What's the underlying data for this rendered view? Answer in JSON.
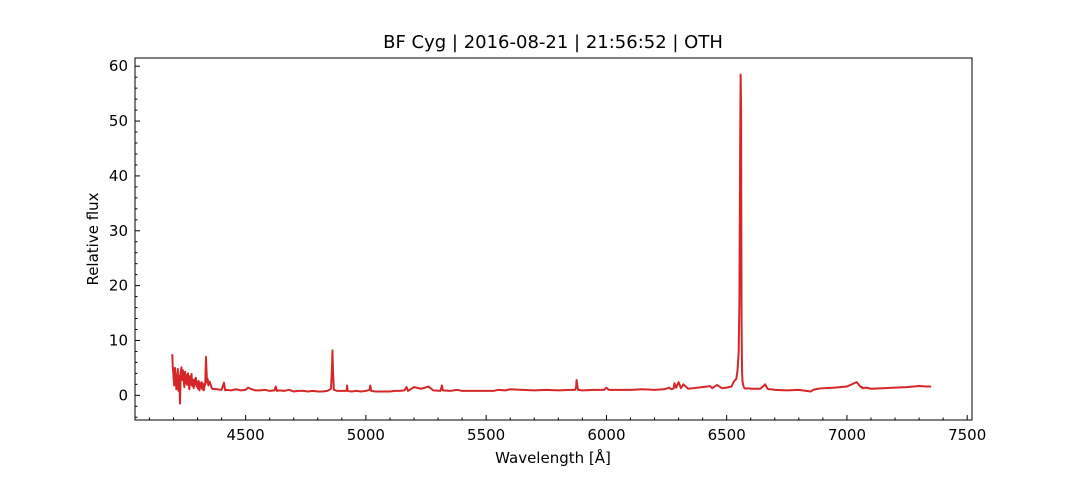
{
  "chart_data": {
    "type": "line",
    "title": "BF Cyg | 2016-08-21 | 21:56:52 | OTH",
    "xlabel": "Wavelength [Å]",
    "ylabel": "Relative flux",
    "xlim": [
      4040,
      7520
    ],
    "ylim": [
      -4.5,
      61.5
    ],
    "xticks": [
      4500,
      5000,
      5500,
      6000,
      6500,
      7000,
      7500
    ],
    "yticks": [
      0,
      10,
      20,
      30,
      40,
      50,
      60
    ],
    "grid": false,
    "line_color": "#d62728",
    "series": [
      {
        "x": [
          4195,
          4197,
          4200,
          4203,
          4206,
          4209,
          4212,
          4215,
          4218,
          4221,
          4224,
          4227,
          4230,
          4233,
          4236,
          4239,
          4242,
          4245,
          4248,
          4251,
          4254,
          4257,
          4260,
          4263,
          4266,
          4269,
          4272,
          4275,
          4278,
          4281,
          4284,
          4287,
          4290,
          4293,
          4296,
          4299,
          4302,
          4305,
          4308,
          4311,
          4314,
          4317,
          4320,
          4323,
          4326,
          4329,
          4332,
          4335,
          4338,
          4340,
          4342,
          4345,
          4350,
          4360,
          4380,
          4400,
          4410,
          4415,
          4420,
          4440,
          4460,
          4480,
          4500,
          4510,
          4520,
          4540,
          4560,
          4580,
          4600,
          4620,
          4625,
          4630,
          4640,
          4660,
          4680,
          4700,
          4720,
          4740,
          4760,
          4780,
          4800,
          4820,
          4840,
          4855,
          4859,
          4861,
          4863,
          4867,
          4880,
          4900,
          4920,
          4922,
          4924,
          4940,
          4960,
          4980,
          5000,
          5015,
          5018,
          5022,
          5040,
          5060,
          5080,
          5100,
          5120,
          5140,
          5160,
          5169,
          5175,
          5200,
          5230,
          5260,
          5280,
          5310,
          5316,
          5320,
          5350,
          5380,
          5400,
          5450,
          5500,
          5530,
          5550,
          5580,
          5600,
          5650,
          5700,
          5750,
          5800,
          5850,
          5870,
          5874,
          5876,
          5878,
          5882,
          5900,
          5950,
          5990,
          6000,
          6010,
          6050,
          6100,
          6150,
          6200,
          6240,
          6260,
          6270,
          6280,
          6283,
          6290,
          6300,
          6310,
          6320,
          6340,
          6360,
          6380,
          6400,
          6420,
          6430,
          6440,
          6460,
          6480,
          6500,
          6520,
          6530,
          6540,
          6545,
          6550,
          6553,
          6556,
          6558,
          6560,
          6561,
          6562,
          6563,
          6564,
          6565,
          6566,
          6568,
          6570,
          6572,
          6575,
          6580,
          6590,
          6600,
          6620,
          6640,
          6660,
          6670,
          6678,
          6685,
          6700,
          6750,
          6800,
          6850,
          6860,
          6870,
          6880,
          6900,
          6950,
          7000,
          7040,
          7060,
          7063,
          7066,
          7080,
          7100,
          7150,
          7200,
          7250,
          7300,
          7330,
          7350
        ],
        "y": [
          7.5,
          5.2,
          3.6,
          1.8,
          5.0,
          3.2,
          1.1,
          2.9,
          4.8,
          0.8,
          3.6,
          -1.5,
          4.2,
          5.1,
          2.8,
          4.6,
          3.0,
          1.5,
          4.3,
          2.2,
          3.7,
          1.9,
          4.0,
          2.4,
          1.1,
          3.5,
          2.0,
          3.9,
          1.7,
          2.8,
          1.3,
          2.9,
          2.0,
          3.2,
          1.6,
          2.5,
          1.2,
          2.6,
          0.9,
          2.2,
          1.4,
          2.4,
          1.1,
          2.1,
          0.9,
          1.7,
          2.0,
          7.0,
          3.8,
          2.3,
          3.0,
          1.8,
          2.5,
          1.2,
          1.1,
          1.0,
          2.3,
          0.9,
          1.0,
          0.9,
          1.1,
          0.9,
          1.0,
          1.4,
          1.2,
          0.9,
          0.9,
          1.0,
          0.8,
          0.9,
          1.6,
          0.8,
          0.9,
          0.8,
          1.0,
          0.7,
          0.8,
          0.8,
          0.7,
          0.8,
          0.7,
          0.7,
          0.8,
          1.2,
          5.0,
          8.2,
          4.5,
          1.0,
          0.8,
          0.8,
          0.8,
          1.8,
          0.8,
          0.7,
          0.8,
          0.7,
          0.8,
          1.0,
          1.8,
          0.8,
          0.7,
          0.7,
          0.7,
          0.7,
          0.8,
          0.8,
          0.9,
          1.5,
          0.8,
          1.5,
          1.2,
          1.6,
          0.9,
          0.8,
          1.8,
          0.9,
          0.8,
          1.0,
          0.8,
          0.8,
          0.8,
          0.8,
          1.0,
          0.9,
          1.1,
          1.0,
          0.9,
          1.0,
          0.9,
          1.0,
          1.0,
          1.5,
          2.8,
          2.0,
          1.0,
          0.9,
          1.0,
          1.0,
          1.4,
          1.0,
          1.0,
          1.0,
          1.1,
          1.0,
          1.1,
          1.4,
          1.1,
          1.3,
          2.2,
          1.4,
          2.4,
          1.3,
          2.0,
          1.2,
          1.3,
          1.4,
          1.5,
          1.6,
          1.7,
          1.3,
          1.9,
          1.3,
          1.4,
          1.6,
          2.5,
          3.0,
          4.5,
          8.0,
          17.5,
          45.0,
          58.5,
          52.0,
          30.0,
          14.0,
          8.0,
          4.5,
          3.2,
          2.5,
          2.0,
          1.7,
          1.4,
          1.3,
          1.2,
          1.3,
          1.2,
          1.2,
          1.2,
          2.0,
          1.2,
          1.1,
          1.1,
          1.0,
          0.9,
          1.0,
          0.7,
          1.0,
          1.1,
          1.2,
          1.3,
          1.4,
          1.6,
          2.4,
          1.4,
          1.5,
          1.3,
          1.4,
          1.2,
          1.3,
          1.4,
          1.5,
          1.7,
          1.6,
          1.6
        ]
      }
    ]
  }
}
